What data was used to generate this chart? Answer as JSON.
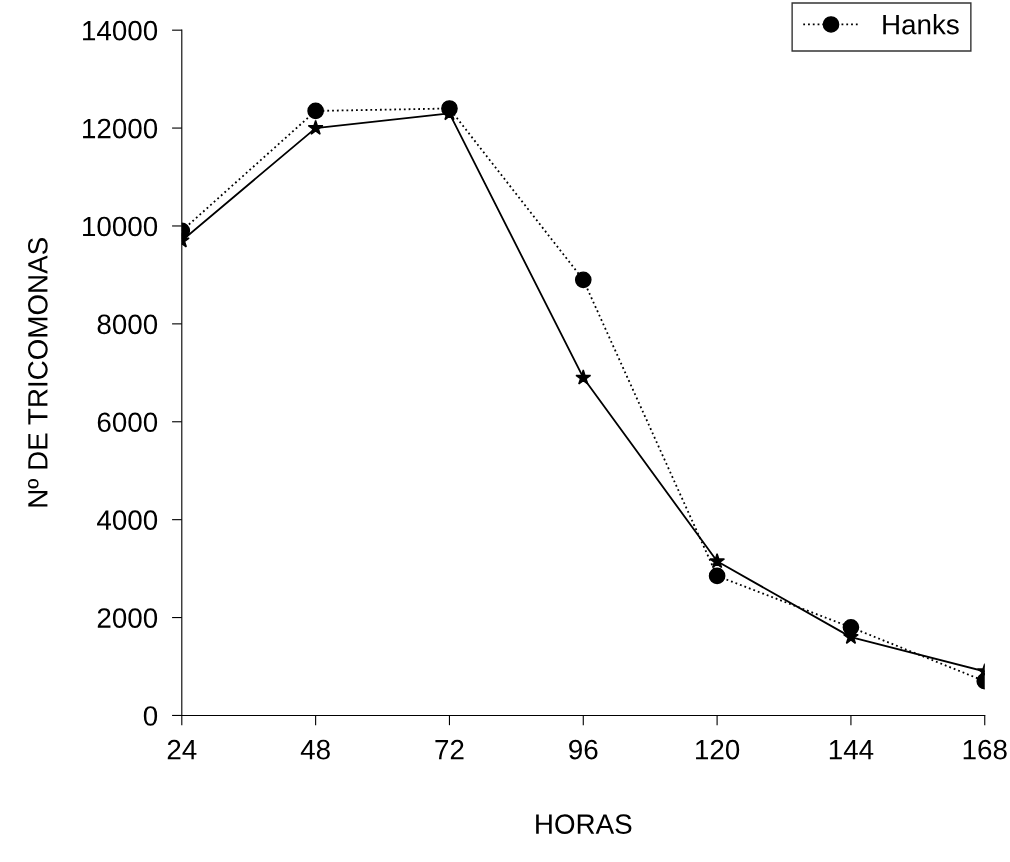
{
  "chart_data": {
    "type": "line",
    "xlabel": "HORAS",
    "ylabel": "Nº DE TRICOMONAS",
    "x": [
      24,
      48,
      72,
      96,
      120,
      144,
      168
    ],
    "xlim": [
      24,
      168
    ],
    "xticks": [
      24,
      48,
      72,
      96,
      120,
      144,
      168
    ],
    "ylim": [
      0,
      14000
    ],
    "yticks": [
      0,
      2000,
      4000,
      6000,
      8000,
      10000,
      12000,
      14000
    ],
    "grid": false,
    "legend": "top right",
    "series": [
      {
        "color": "#000000",
        "marker": "star",
        "line_style": "solid",
        "values": [
          9700,
          12000,
          12300,
          6900,
          3150,
          1600,
          900
        ]
      },
      {
        "name": "Hanks",
        "color": "#000000",
        "marker": "circle",
        "line_style": "dotted",
        "values": [
          9900,
          12350,
          12400,
          8900,
          2850,
          1800,
          700
        ]
      }
    ]
  }
}
